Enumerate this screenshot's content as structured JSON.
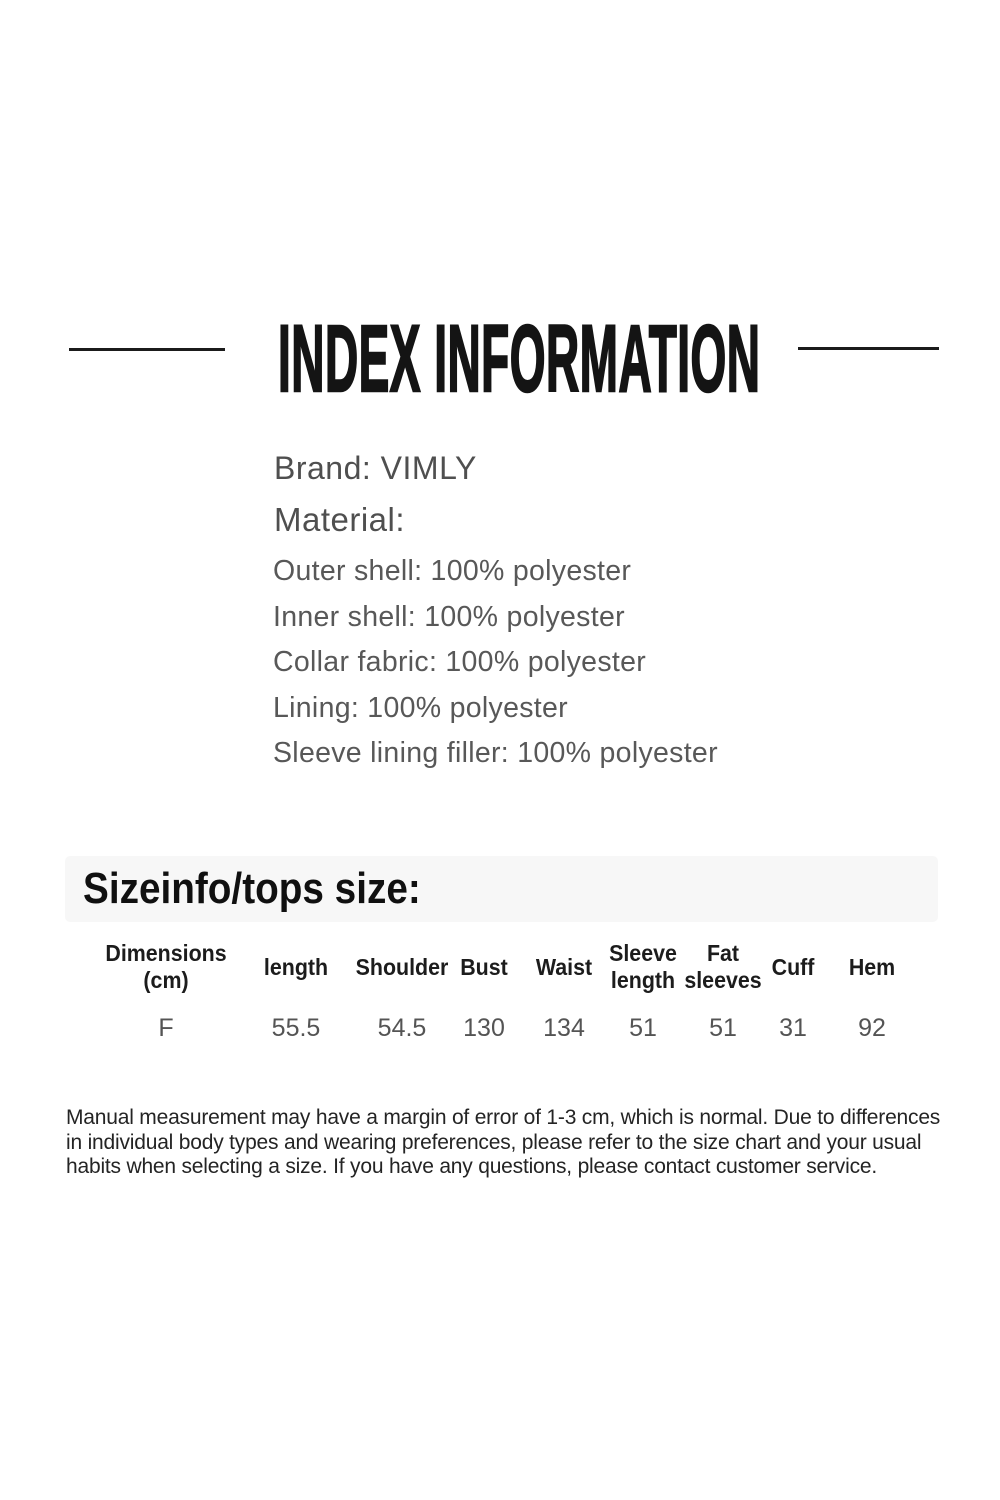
{
  "title": {
    "text": "INDEX INFORMATION"
  },
  "product": {
    "brand_line": "Brand: VIMLY",
    "material_label": "Material:",
    "materials": [
      "Outer shell: 100% polyester",
      "Inner shell: 100% polyester",
      "Collar fabric: 100% polyester",
      "Lining: 100% polyester",
      "Sleeve lining filler: 100% polyester"
    ]
  },
  "size_section": {
    "heading": "Sizeinfo/tops size:",
    "table": {
      "headers": [
        "Dimensions\n(cm)",
        "length",
        "Shoulder",
        "Bust",
        "Waist",
        "Sleeve\nlength",
        "Fat\nsleeves",
        "Cuff",
        "Hem"
      ],
      "rows": [
        [
          "F",
          "55.5",
          "54.5",
          "130",
          "134",
          "51",
          "51",
          "31",
          "92"
        ]
      ]
    }
  },
  "disclaimer": {
    "lines": [
      "Manual measurement may have a margin of error of 1-3 cm, which is normal. Due to differences",
      "in individual body types and wearing preferences, please refer to the size chart and your usual",
      "habits when selecting a size. If you have any questions, please contact customer service."
    ]
  },
  "colors": {
    "background": "#ffffff",
    "title_text": "#141414",
    "body_text_gray": "#585858",
    "size_bar_background": "#f7f7f7",
    "table_header_text": "#1c1c1c",
    "table_value_text": "#545454",
    "disclaimer_text": "#242424"
  }
}
